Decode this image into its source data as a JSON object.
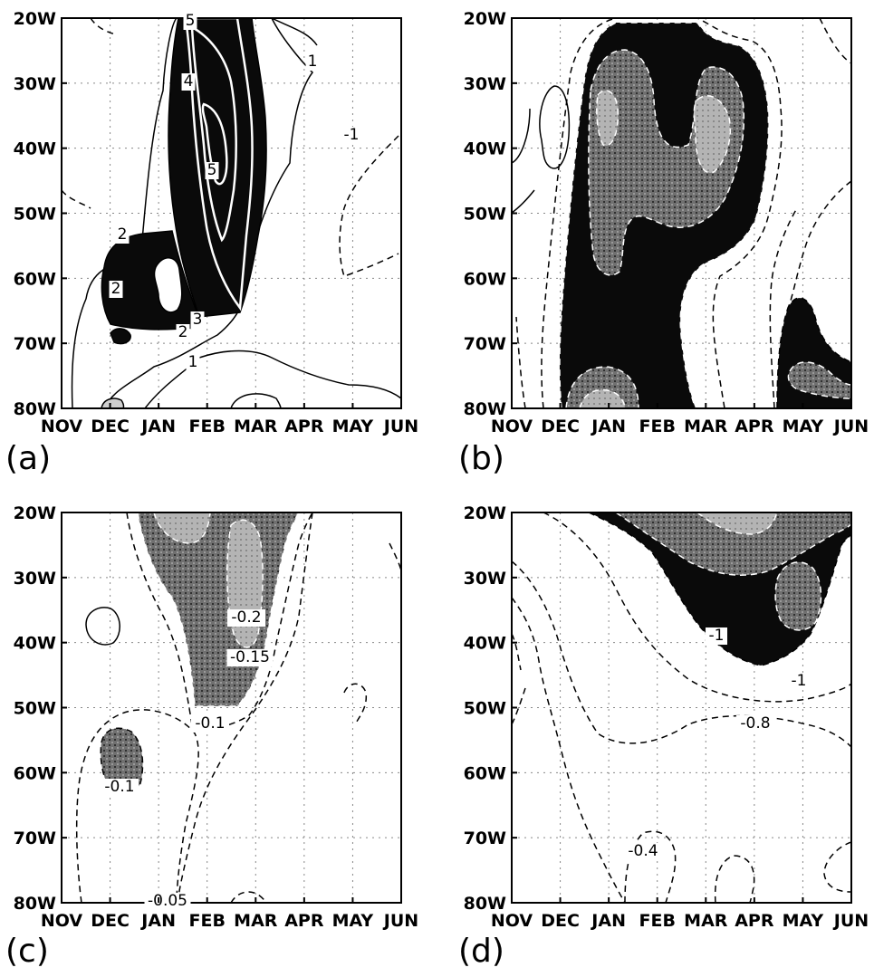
{
  "panels_meta": {
    "colors": {
      "heavy": "#0a0a0a",
      "medium": "#6e6e6e",
      "light": "#bdbdbd",
      "grid": "#888888"
    }
  },
  "chart_data": [
    {
      "type": "heatmap",
      "panel_label": "(a)",
      "x": [
        "NOV",
        "DEC",
        "JAN",
        "FEB",
        "MAR",
        "APR",
        "MAY",
        "JUN"
      ],
      "y": [
        "20W",
        "30W",
        "40W",
        "50W",
        "60W",
        "70W",
        "80W"
      ],
      "contour_labels": [
        "5",
        "4",
        "5",
        "2",
        "2",
        "3",
        "2",
        "1",
        "1",
        "-1"
      ],
      "shaded_regions": [
        {
          "level": 2,
          "shade": "heavy",
          "center": [
            "FEB",
            "35W"
          ]
        },
        {
          "level": 2,
          "shade": "heavy",
          "center": [
            "DEC",
            "63W"
          ]
        }
      ]
    },
    {
      "type": "heatmap",
      "panel_label": "(b)",
      "x": [
        "NOV",
        "DEC",
        "JAN",
        "FEB",
        "MAR",
        "APR",
        "MAY",
        "JUN"
      ],
      "y": [
        "20W",
        "30W",
        "40W",
        "50W",
        "60W",
        "70W",
        "80W"
      ],
      "contour_labels": [],
      "shaded_regions": [
        {
          "shade": "heavy",
          "center": [
            "FEB",
            "50W"
          ]
        },
        {
          "shade": "medium",
          "center": [
            "FEB",
            "38W"
          ]
        },
        {
          "shade": "heavy",
          "center": [
            "MAY",
            "75W"
          ]
        }
      ]
    },
    {
      "type": "heatmap",
      "panel_label": "(c)",
      "x": [
        "NOV",
        "DEC",
        "JAN",
        "FEB",
        "MAR",
        "APR",
        "MAY",
        "JUN"
      ],
      "y": [
        "20W",
        "30W",
        "40W",
        "50W",
        "60W",
        "70W",
        "80W"
      ],
      "contour_labels": [
        "-0.2",
        "-0.15",
        "-0.1",
        "-0.1",
        "-0.05"
      ],
      "shaded_regions": [
        {
          "level": -0.1,
          "shade": "medium",
          "center": [
            "FEB",
            "32W"
          ]
        },
        {
          "level": -0.2,
          "shade": "light",
          "center": [
            "MAR",
            "30W"
          ]
        },
        {
          "level": -0.1,
          "shade": "medium",
          "center": [
            "DEC",
            "60W"
          ]
        }
      ]
    },
    {
      "type": "heatmap",
      "panel_label": "(d)",
      "x": [
        "NOV",
        "DEC",
        "JAN",
        "FEB",
        "MAR",
        "APR",
        "MAY",
        "JUN"
      ],
      "y": [
        "20W",
        "30W",
        "40W",
        "50W",
        "60W",
        "70W",
        "80W"
      ],
      "contour_labels": [
        "-1",
        "-1",
        "-0.8",
        "-0.4"
      ],
      "shaded_regions": [
        {
          "level": -0.8,
          "shade": "heavy",
          "center": [
            "APR",
            "35W"
          ]
        },
        {
          "level": -1,
          "shade": "medium",
          "center": [
            "MAR",
            "25W"
          ]
        }
      ]
    }
  ]
}
